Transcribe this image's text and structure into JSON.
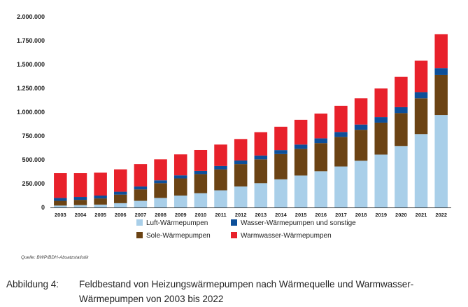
{
  "source": "Quelle: BWP/BDH-Absatzstatistik",
  "caption": {
    "label": "Abbildung 4:",
    "text": "Feldbestand von Heizungswärmepumpen nach Wärmequelle und Warmwasser-Wärmepumpen von 2003 bis 2022"
  },
  "colors": {
    "luft": "#a9cfe9",
    "sole": "#6b4314",
    "wasser": "#0d4f99",
    "warmwasser": "#e8212b"
  },
  "chart_data": {
    "type": "bar",
    "stacked": true,
    "title": "",
    "xlabel": "",
    "ylabel": "",
    "ylim": [
      0,
      2000000
    ],
    "yticks": [
      "0",
      "250.000",
      "500.000",
      "750.000",
      "1.000.000",
      "1.250.000",
      "1.500.000",
      "1.750.000",
      "2.000.000"
    ],
    "grid": false,
    "legend_position": "bottom",
    "categories": [
      "2003",
      "2004",
      "2005",
      "2006",
      "2007",
      "2008",
      "2009",
      "2010",
      "2011",
      "2012",
      "2013",
      "2014",
      "2015",
      "2016",
      "2017",
      "2018",
      "2019",
      "2020",
      "2021",
      "2022"
    ],
    "series": [
      {
        "name": "Luft-Wärmepumpen",
        "color_key": "luft",
        "values": [
          20000,
          25000,
          30000,
          45000,
          70000,
          100000,
          125000,
          150000,
          180000,
          220000,
          255000,
          295000,
          335000,
          380000,
          430000,
          490000,
          555000,
          645000,
          770000,
          970000
        ]
      },
      {
        "name": "Sole-Wärmepumpen",
        "color_key": "sole",
        "values": [
          50000,
          55000,
          65000,
          90000,
          120000,
          155000,
          180000,
          200000,
          220000,
          235000,
          250000,
          265000,
          280000,
          295000,
          310000,
          325000,
          335000,
          345000,
          375000,
          420000
        ]
      },
      {
        "name": "Wasser-Wärmepumpen und sonstige",
        "color_key": "wasser",
        "values": [
          30000,
          30000,
          30000,
          30000,
          30000,
          30000,
          32000,
          33000,
          35000,
          38000,
          40000,
          42000,
          45000,
          50000,
          52000,
          55000,
          58000,
          62000,
          65000,
          72000
        ]
      },
      {
        "name": "Warmwasser-Wärmepumpen",
        "color_key": "warmwasser",
        "values": [
          260000,
          250000,
          240000,
          235000,
          235000,
          220000,
          220000,
          220000,
          225000,
          225000,
          245000,
          245000,
          260000,
          260000,
          275000,
          275000,
          300000,
          318000,
          330000,
          355000
        ]
      }
    ]
  }
}
